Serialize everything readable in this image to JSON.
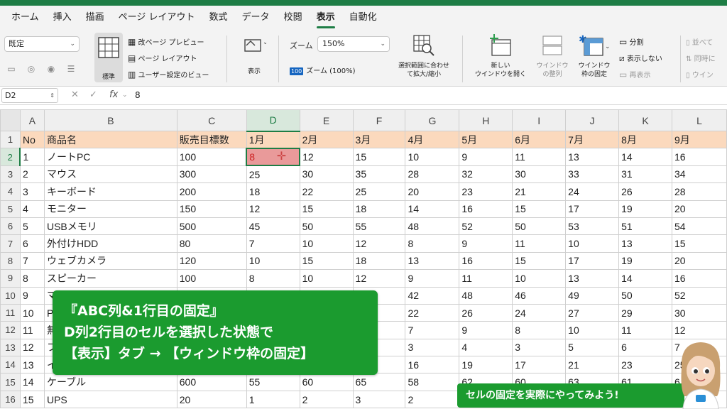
{
  "ribbon_tabs": [
    "ホーム",
    "挿入",
    "描画",
    "ページ レイアウト",
    "数式",
    "データ",
    "校閲",
    "表示",
    "自動化"
  ],
  "active_tab_index": 7,
  "ribbon": {
    "view_select": "既定",
    "normal_label": "標準",
    "page_break_preview": "改ページ プレビュー",
    "page_layout": "ページ レイアウト",
    "custom_views": "ユーザー設定のビュー",
    "show_label": "表示",
    "zoom_label": "ズーム",
    "zoom_value": "150%",
    "zoom_100_badge": "100",
    "zoom_100": "ズーム (100%)",
    "zoom_selection_1": "選択範囲に合わせ",
    "zoom_selection_2": "て拡大/縮小",
    "new_window_1": "新しい",
    "new_window_2": "ウインドウを開く",
    "arrange_1": "ウインドウ",
    "arrange_2": "の整列",
    "freeze_1": "ウインドウ",
    "freeze_2": "枠の固定",
    "split": "分割",
    "hide": "表示しない",
    "unhide": "再表示",
    "side_by_side": "並べて",
    "sync_scroll": "同時に",
    "reset_position": "ウイン"
  },
  "formula_bar": {
    "name_box": "D2",
    "fx": "fx",
    "value": "8"
  },
  "grid": {
    "columns": [
      "A",
      "B",
      "C",
      "D",
      "E",
      "F",
      "G",
      "H",
      "I",
      "J",
      "K",
      "L"
    ],
    "row_numbers": [
      "1",
      "2",
      "3",
      "4",
      "5",
      "6",
      "7",
      "8",
      "9",
      "10",
      "11",
      "12",
      "13",
      "14",
      "15",
      "16"
    ],
    "rows": [
      [
        "No",
        "商品名",
        "販売目標数",
        "1月",
        "2月",
        "3月",
        "4月",
        "5月",
        "6月",
        "7月",
        "8月",
        "9月"
      ],
      [
        "1",
        "ノートPC",
        "100",
        "8",
        "12",
        "15",
        "10",
        "9",
        "11",
        "13",
        "14",
        "16"
      ],
      [
        "2",
        "マウス",
        "300",
        "25",
        "30",
        "35",
        "28",
        "32",
        "30",
        "33",
        "31",
        "34"
      ],
      [
        "3",
        "キーボード",
        "200",
        "18",
        "22",
        "25",
        "20",
        "23",
        "21",
        "24",
        "26",
        "28"
      ],
      [
        "4",
        "モニター",
        "150",
        "12",
        "15",
        "18",
        "14",
        "16",
        "15",
        "17",
        "19",
        "20"
      ],
      [
        "5",
        "USBメモリ",
        "500",
        "45",
        "50",
        "55",
        "48",
        "52",
        "50",
        "53",
        "51",
        "54"
      ],
      [
        "6",
        "外付けHDD",
        "80",
        "7",
        "10",
        "12",
        "8",
        "9",
        "11",
        "10",
        "13",
        "15"
      ],
      [
        "7",
        "ウェブカメラ",
        "120",
        "10",
        "15",
        "18",
        "13",
        "16",
        "15",
        "17",
        "19",
        "20"
      ],
      [
        "8",
        "スピーカー",
        "100",
        "8",
        "10",
        "12",
        "9",
        "11",
        "10",
        "13",
        "14",
        "16"
      ],
      [
        "9",
        "マ",
        "",
        "",
        "",
        "",
        "42",
        "48",
        "46",
        "49",
        "50",
        "52"
      ],
      [
        "10",
        "P",
        "",
        "",
        "",
        "",
        "22",
        "26",
        "24",
        "27",
        "29",
        "30"
      ],
      [
        "11",
        "無",
        "",
        "",
        "",
        "",
        "7",
        "9",
        "8",
        "10",
        "11",
        "12"
      ],
      [
        "12",
        "フ",
        "",
        "",
        "",
        "",
        "3",
        "4",
        "3",
        "5",
        "6",
        "7"
      ],
      [
        "13",
        "イ",
        "",
        "",
        "",
        "",
        "16",
        "19",
        "17",
        "21",
        "23",
        "25"
      ],
      [
        "14",
        "ケーブル",
        "600",
        "55",
        "60",
        "65",
        "58",
        "62",
        "60",
        "63",
        "61",
        "6"
      ],
      [
        "15",
        "UPS",
        "20",
        "1",
        "2",
        "3",
        "2",
        "",
        "",
        "",
        "",
        ""
      ]
    ]
  },
  "callout": {
    "line1": "『ABC列&1行目の固定』",
    "line2": "D列2行目のセルを選択した状態で",
    "line3": "【表示】タブ → 【ウィンドウ枠の固定】"
  },
  "banner": "セルの固定を実際にやってみよう!",
  "colors": {
    "accent": "#1e7d45",
    "header_row": "#fbd9bd",
    "active_cell": "#e99a9a",
    "callout": "#1b9b2f"
  }
}
